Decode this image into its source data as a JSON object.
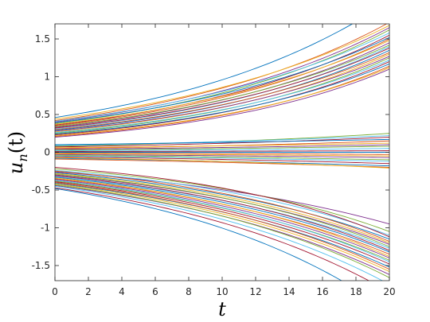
{
  "chart_data": {
    "type": "line",
    "title": "",
    "xlabel": "t",
    "ylabel_main": "u",
    "ylabel_sub": "n",
    "ylabel_tail": "(t)",
    "xlim": [
      0,
      20
    ],
    "ylim": [
      -1.7,
      1.7
    ],
    "xticks": [
      0,
      2,
      4,
      6,
      8,
      10,
      12,
      14,
      16,
      18,
      20
    ],
    "xtick_labels": [
      "0",
      "2",
      "4",
      "6",
      "8",
      "10",
      "12",
      "14",
      "16",
      "18",
      "20"
    ],
    "yticks": [
      1.5,
      1,
      0.5,
      0,
      -0.5,
      -1,
      -1.5
    ],
    "ytick_labels": [
      "1.5",
      "1",
      "0.5",
      "0",
      "-0.5",
      "-1",
      "-1.5"
    ],
    "grid": false,
    "legend": "none",
    "palette": [
      "#0072bd",
      "#d95319",
      "#edb120",
      "#7e2f8e",
      "#77ac30",
      "#4dbeee",
      "#a2142f"
    ],
    "x": [
      0,
      20
    ],
    "series": [
      {
        "start": 0.46,
        "end": 2.0
      },
      {
        "start": 0.42,
        "end": 1.72
      },
      {
        "start": 0.44,
        "end": 1.68
      },
      {
        "start": 0.4,
        "end": 1.65
      },
      {
        "start": 0.38,
        "end": 1.62
      },
      {
        "start": 0.41,
        "end": 1.58
      },
      {
        "start": 0.36,
        "end": 1.55
      },
      {
        "start": 0.39,
        "end": 1.52
      },
      {
        "start": 0.35,
        "end": 1.5
      },
      {
        "start": 0.37,
        "end": 1.48
      },
      {
        "start": 0.33,
        "end": 1.45
      },
      {
        "start": 0.34,
        "end": 1.42
      },
      {
        "start": 0.31,
        "end": 1.4
      },
      {
        "start": 0.32,
        "end": 1.38
      },
      {
        "start": 0.29,
        "end": 1.35
      },
      {
        "start": 0.3,
        "end": 1.32
      },
      {
        "start": 0.27,
        "end": 1.3
      },
      {
        "start": 0.28,
        "end": 1.27
      },
      {
        "start": 0.25,
        "end": 1.25
      },
      {
        "start": 0.26,
        "end": 1.22
      },
      {
        "start": 0.23,
        "end": 1.2
      },
      {
        "start": 0.24,
        "end": 1.17
      },
      {
        "start": 0.21,
        "end": 1.14
      },
      {
        "start": 0.22,
        "end": 1.12
      },
      {
        "start": 0.2,
        "end": 1.1
      },
      {
        "start": 0.08,
        "end": 0.25
      },
      {
        "start": 0.09,
        "end": 0.22
      },
      {
        "start": 0.07,
        "end": 0.2
      },
      {
        "start": 0.1,
        "end": 0.17
      },
      {
        "start": 0.05,
        "end": 0.15
      },
      {
        "start": 0.06,
        "end": 0.12
      },
      {
        "start": 0.04,
        "end": 0.1
      },
      {
        "start": 0.03,
        "end": 0.08
      },
      {
        "start": 0.02,
        "end": 0.05
      },
      {
        "start": 0.01,
        "end": 0.02
      },
      {
        "start": 0.0,
        "end": 0.0
      },
      {
        "start": -0.01,
        "end": -0.03
      },
      {
        "start": -0.02,
        "end": -0.05
      },
      {
        "start": -0.03,
        "end": -0.07
      },
      {
        "start": -0.04,
        "end": -0.1
      },
      {
        "start": -0.05,
        "end": -0.12
      },
      {
        "start": -0.06,
        "end": -0.15
      },
      {
        "start": -0.08,
        "end": -0.18
      },
      {
        "start": -0.09,
        "end": -0.2
      },
      {
        "start": -0.07,
        "end": -0.21
      },
      {
        "start": -0.26,
        "end": -0.95
      },
      {
        "start": -0.22,
        "end": -1.05
      },
      {
        "start": -0.24,
        "end": -1.1
      },
      {
        "start": -0.2,
        "end": -1.12
      },
      {
        "start": -0.27,
        "end": -1.15
      },
      {
        "start": -0.25,
        "end": -1.18
      },
      {
        "start": -0.28,
        "end": -1.2
      },
      {
        "start": -0.3,
        "end": -1.22
      },
      {
        "start": -0.29,
        "end": -1.25
      },
      {
        "start": -0.32,
        "end": -1.27
      },
      {
        "start": -0.31,
        "end": -1.3
      },
      {
        "start": -0.33,
        "end": -1.32
      },
      {
        "start": -0.35,
        "end": -1.35
      },
      {
        "start": -0.34,
        "end": -1.38
      },
      {
        "start": -0.36,
        "end": -1.4
      },
      {
        "start": -0.38,
        "end": -1.43
      },
      {
        "start": -0.37,
        "end": -1.45
      },
      {
        "start": -0.39,
        "end": -1.48
      },
      {
        "start": -0.41,
        "end": -1.52
      },
      {
        "start": -0.4,
        "end": -1.55
      },
      {
        "start": -0.42,
        "end": -1.58
      },
      {
        "start": -0.44,
        "end": -1.62
      },
      {
        "start": -0.43,
        "end": -1.66
      },
      {
        "start": -0.45,
        "end": -1.75
      },
      {
        "start": -0.47,
        "end": -1.85
      },
      {
        "start": -0.48,
        "end": -2.1
      }
    ]
  }
}
